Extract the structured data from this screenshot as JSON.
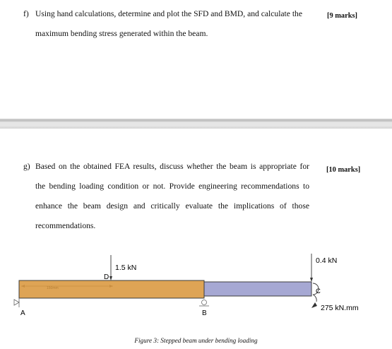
{
  "question_f": {
    "label": "f)",
    "line1": "Using hand calculations, determine and plot the SFD and BMD, and calculate the",
    "line2": "maximum bending stress generated within the beam.",
    "marks": "[9 marks]"
  },
  "question_g": {
    "label": "g)",
    "line1": "Based on the obtained FEA results, discuss whether the beam is appropriate for",
    "line2": "the bending loading condition or not. Provide engineering recommendations to",
    "line3": "enhance the beam design and critically evaluate the implications of those",
    "line4": "recommendations.",
    "marks": "[10 marks]"
  },
  "figure": {
    "load_d": "1.5 kN",
    "load_c": "0.4 kN",
    "moment_c": "275 kN.mm",
    "point_a": "A",
    "point_b": "B",
    "point_c": "C",
    "point_d": "D",
    "dimension_text": "150mm",
    "caption": "Figure 3: Stepped beam under bending loading",
    "colors": {
      "left_segment": "#dea455",
      "right_segment": "#a6a8d3",
      "outline": "#3c3c3c"
    }
  }
}
